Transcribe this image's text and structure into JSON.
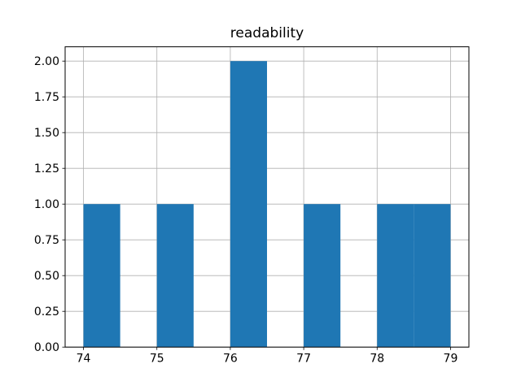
{
  "chart_data": {
    "type": "bar",
    "subtype": "histogram",
    "title": "readability",
    "xlabel": "",
    "ylabel": "",
    "bin_edges": [
      74.0,
      74.5,
      75.0,
      75.5,
      76.0,
      76.5,
      77.0,
      77.5,
      78.0,
      78.5,
      79.0
    ],
    "counts": [
      1,
      0,
      1,
      0,
      2,
      0,
      1,
      0,
      1,
      1
    ],
    "xlim": [
      73.75,
      79.25
    ],
    "ylim": [
      0,
      2.1
    ],
    "xtick_values": [
      74,
      75,
      76,
      77,
      78,
      79
    ],
    "xtick_labels": [
      "74",
      "75",
      "76",
      "77",
      "78",
      "79"
    ],
    "ytick_values": [
      0.0,
      0.25,
      0.5,
      0.75,
      1.0,
      1.25,
      1.5,
      1.75,
      2.0
    ],
    "ytick_labels": [
      "0.00",
      "0.25",
      "0.50",
      "0.75",
      "1.00",
      "1.25",
      "1.50",
      "1.75",
      "2.00"
    ],
    "grid": true,
    "legend": null,
    "bar_color": "#1f77b4",
    "grid_color": "#b0b0b0",
    "axis_color": "#000000",
    "background_color": "#ffffff"
  }
}
